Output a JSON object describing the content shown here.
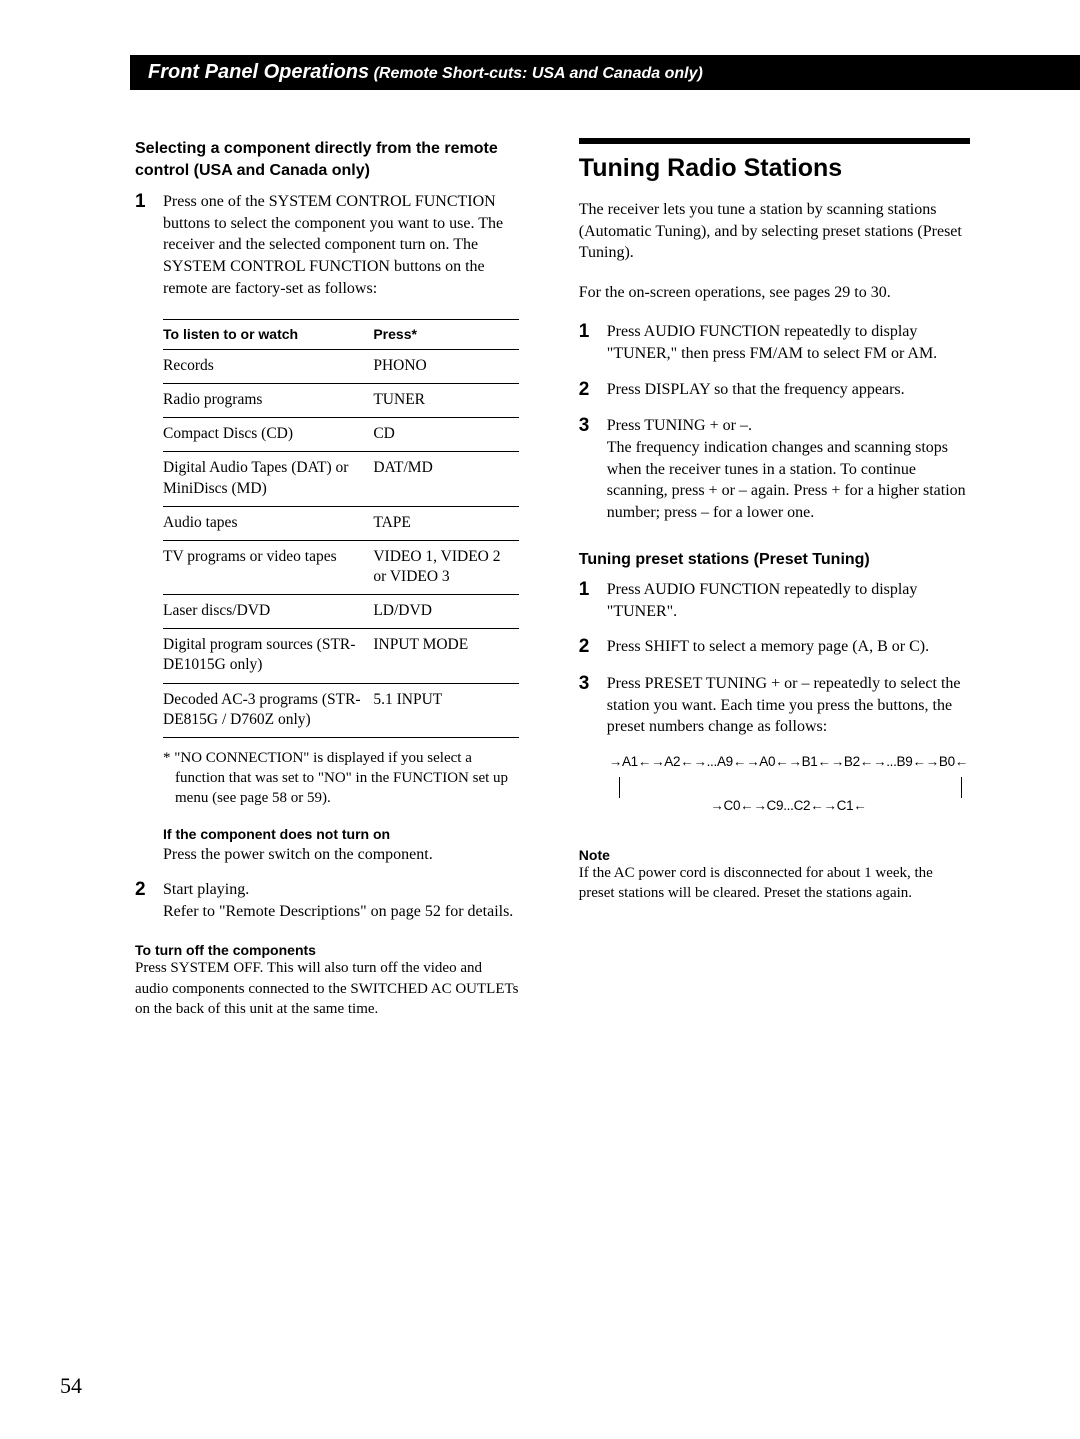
{
  "header": {
    "title": "Front Panel Operations",
    "subtitle": " (Remote Short-cuts: USA and Canada only)"
  },
  "left": {
    "subhead": "Selecting a component directly from the remote control (USA and Canada only)",
    "step1_num": "1",
    "step1": "Press one of the SYSTEM CONTROL FUNCTION buttons to select the component you want to use. The receiver and the selected component turn on. The SYSTEM CONTROL FUNCTION buttons on the remote are factory-set as follows:",
    "table": {
      "col1": "To listen to or watch",
      "col2": "Press*",
      "rows": [
        [
          "Records",
          "PHONO"
        ],
        [
          "Radio programs",
          "TUNER"
        ],
        [
          "Compact Discs (CD)",
          "CD"
        ],
        [
          "Digital Audio Tapes (DAT) or MiniDiscs (MD)",
          "DAT/MD"
        ],
        [
          "Audio tapes",
          "TAPE"
        ],
        [
          "TV programs or video tapes",
          "VIDEO 1, VIDEO 2 or VIDEO 3"
        ],
        [
          "Laser discs/DVD",
          "LD/DVD"
        ],
        [
          "Digital program sources (STR-DE1015G only)",
          "INPUT MODE"
        ],
        [
          "Decoded AC-3 programs (STR-DE815G / D760Z only)",
          "5.1 INPUT"
        ]
      ]
    },
    "footnote": "* \"NO CONNECTION\" is displayed if you select a function that was set to \"NO\" in the FUNCTION set up menu (see page 58 or 59).",
    "noturnon_head": "If the component does not turn on",
    "noturnon_body": "Press the power switch on the component.",
    "step2_num": "2",
    "step2": "Start playing.\nRefer to \"Remote Descriptions\" on page 52 for details.",
    "turnoff_head": "To turn off the components",
    "turnoff_body": "Press SYSTEM OFF. This will also turn off the video and audio components connected to the SWITCHED AC OUTLETs on the back of this unit at the same time."
  },
  "right": {
    "h2": "Tuning Radio Stations",
    "intro": "The receiver lets you tune a station by scanning stations (Automatic Tuning), and by selecting preset stations (Preset Tuning).",
    "onscreen": "For the on-screen operations, see pages 29 to 30.",
    "s1_num": "1",
    "s1": "Press AUDIO FUNCTION repeatedly to display \"TUNER,\" then press FM/AM to select FM or AM.",
    "s2_num": "2",
    "s2": "Press DISPLAY so that the frequency appears.",
    "s3_num": "3",
    "s3": "Press TUNING + or –.\nThe frequency indication changes and scanning stops when the receiver tunes in a station.  To continue scanning, press + or – again.  Press + for a higher station number;  press – for a lower one.",
    "preset_head": "Tuning preset stations (Preset Tuning)",
    "p1_num": "1",
    "p1": "Press AUDIO FUNCTION repeatedly to display \"TUNER\".",
    "p2_num": "2",
    "p2": "Press SHIFT to select a memory page (A, B or C).",
    "p3_num": "3",
    "p3": "Press PRESET TUNING + or – repeatedly to select the station you want. Each time you press the buttons, the preset numbers change as follows:",
    "seq_row1": "→A1←→A2←→...A9←→A0←→B1←→B2←→...B9←→B0←",
    "seq_row2": "→C0←→C9...C2←→C1←",
    "note_head": "Note",
    "note_body": "If the AC power cord is disconnected for about 1 week, the preset stations will be cleared.  Preset the stations again."
  },
  "page_number": "54"
}
